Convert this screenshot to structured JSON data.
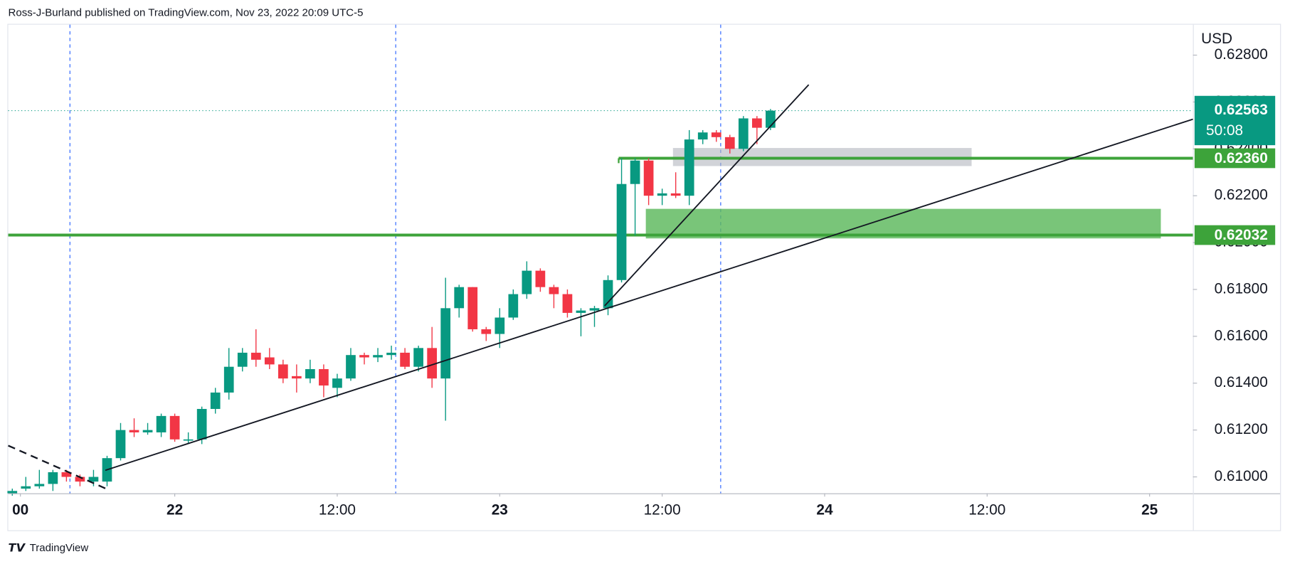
{
  "header": "Ross-J-Burland published on TradingView.com, Nov 23, 2022 20:09 UTC-5",
  "footer": "TradingView",
  "chart_data": {
    "type": "candlestick",
    "y_axis_label": "USD",
    "up_color": "#089981",
    "down_color": "#f23645",
    "open": [
      0.6093,
      0.6095,
      0.6096,
      0.6097,
      0.6102,
      0.61,
      0.6098,
      0.6098,
      0.6108,
      0.612,
      0.6119,
      0.6119,
      0.6126,
      0.6116,
      0.6116,
      0.6129,
      0.6136,
      0.6147,
      0.6153,
      0.6151,
      0.6148,
      0.6143,
      0.6142,
      0.6146,
      0.6138,
      0.6142,
      0.6152,
      0.6151,
      0.6152,
      0.6153,
      0.6147,
      0.6155,
      0.6142,
      0.6172,
      0.6181,
      0.6163,
      0.6161,
      0.6168,
      0.6178,
      0.6188,
      0.6181,
      0.6178,
      0.617,
      0.6171,
      0.6172,
      0.6184,
      0.6225,
      0.6235,
      0.622,
      0.6221,
      0.622,
      0.6244,
      0.6247,
      0.6245,
      0.624,
      0.6253,
      0.6249
    ],
    "high": [
      0.6095,
      0.61,
      0.6103,
      0.6103,
      0.6103,
      0.6101,
      0.6103,
      0.6109,
      0.6123,
      0.6125,
      0.6123,
      0.6127,
      0.6127,
      0.6119,
      0.613,
      0.6138,
      0.6155,
      0.6155,
      0.6163,
      0.6155,
      0.615,
      0.6148,
      0.615,
      0.6148,
      0.6144,
      0.6155,
      0.6153,
      0.6155,
      0.6156,
      0.6155,
      0.6156,
      0.6164,
      0.6185,
      0.6182,
      0.6181,
      0.6164,
      0.6172,
      0.618,
      0.6192,
      0.6189,
      0.6182,
      0.618,
      0.6172,
      0.6173,
      0.6186,
      0.6236,
      0.6236,
      0.6236,
      0.6223,
      0.623,
      0.6248,
      0.6248,
      0.6248,
      0.6246,
      0.6254,
      0.6254,
      0.6257
    ],
    "low": [
      0.6092,
      0.6094,
      0.6095,
      0.6094,
      0.6098,
      0.6096,
      0.6096,
      0.6096,
      0.6107,
      0.6117,
      0.6118,
      0.6117,
      0.6115,
      0.6114,
      0.6114,
      0.6127,
      0.6133,
      0.6145,
      0.6147,
      0.6146,
      0.614,
      0.6136,
      0.614,
      0.6134,
      0.6134,
      0.6141,
      0.6148,
      0.6149,
      0.615,
      0.6146,
      0.6145,
      0.6138,
      0.6124,
      0.6168,
      0.6162,
      0.6158,
      0.6155,
      0.6167,
      0.6176,
      0.6179,
      0.6172,
      0.6168,
      0.616,
      0.6164,
      0.6169,
      0.6183,
      0.6203,
      0.6216,
      0.6216,
      0.6219,
      0.6216,
      0.6242,
      0.6243,
      0.6238,
      0.6239,
      0.6242,
      0.6248
    ],
    "close": [
      0.6094,
      0.6096,
      0.6097,
      0.6102,
      0.61,
      0.6098,
      0.61,
      0.6108,
      0.612,
      0.6119,
      0.612,
      0.6126,
      0.6116,
      0.6116,
      0.6129,
      0.6136,
      0.6147,
      0.6153,
      0.615,
      0.6148,
      0.6142,
      0.6142,
      0.6146,
      0.6139,
      0.6142,
      0.6152,
      0.6151,
      0.6152,
      0.6153,
      0.6147,
      0.6155,
      0.6142,
      0.6172,
      0.6181,
      0.6163,
      0.6161,
      0.6168,
      0.6178,
      0.6188,
      0.6181,
      0.6178,
      0.617,
      0.6171,
      0.6172,
      0.6184,
      0.6225,
      0.6235,
      0.622,
      0.6221,
      0.622,
      0.6244,
      0.6247,
      0.6245,
      0.624,
      0.6253,
      0.6249,
      0.62563
    ],
    "xlim": [
      -0.3,
      87.2
    ],
    "xticks": [
      {
        "value": 0.6,
        "label": "00"
      },
      {
        "value": 12,
        "label": "22"
      },
      {
        "value": 24,
        "label": "12:00"
      },
      {
        "value": 36,
        "label": "23"
      },
      {
        "value": 48,
        "label": "12:00"
      },
      {
        "value": 60,
        "label": "24"
      },
      {
        "value": 72,
        "label": "12:00"
      },
      {
        "value": 84,
        "label": "25"
      }
    ],
    "ylim": [
      0.6093,
      0.6293
    ],
    "yticks": [
      {
        "value": 0.61,
        "label": "0.61000"
      },
      {
        "value": 0.612,
        "label": "0.61200"
      },
      {
        "value": 0.614,
        "label": "0.61400"
      },
      {
        "value": 0.616,
        "label": "0.61600"
      },
      {
        "value": 0.618,
        "label": "0.61800"
      },
      {
        "value": 0.62,
        "label": "0.62000"
      },
      {
        "value": 0.622,
        "label": "0.62200"
      },
      {
        "value": 0.624,
        "label": "0.62400"
      },
      {
        "value": 0.626,
        "label": "0.62600"
      },
      {
        "value": 0.628,
        "label": "0.62800"
      }
    ],
    "last_price": {
      "value": 0.62563,
      "label": "0.62563",
      "countdown": "50:08",
      "color": "#089981"
    },
    "levels": [
      {
        "value": 0.6236,
        "label": "0.62360",
        "color": "#3da33a"
      },
      {
        "value": 0.62032,
        "label": "0.62032",
        "color": "#3da33a"
      }
    ]
  }
}
